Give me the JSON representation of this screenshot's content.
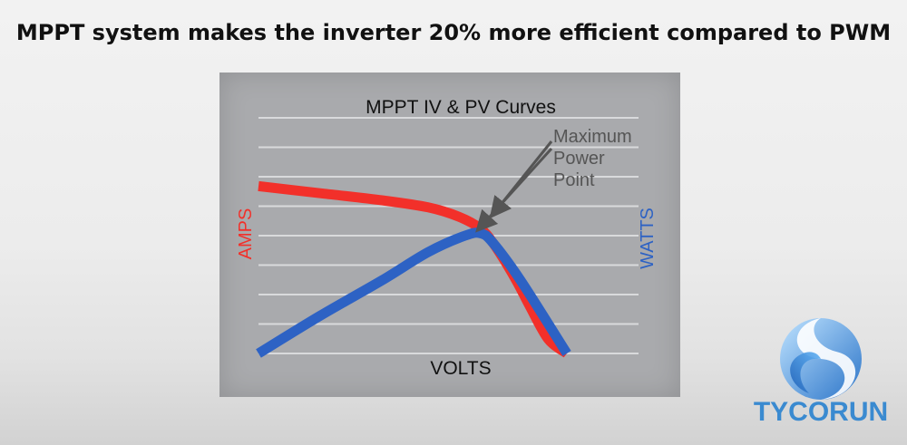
{
  "headline": "MPPT system makes the inverter 20% more efficient compared to PWM",
  "brand": {
    "name": "TYCORUN",
    "color": "#3a8ad0"
  },
  "chart_data": {
    "type": "line",
    "title": "MPPT IV & PV Curves",
    "xlabel": "VOLTS",
    "ylabel_left": "AMPS",
    "ylabel_right": "WATTS",
    "annotation": [
      "Maximum",
      "Power",
      "Point"
    ],
    "grid": true,
    "xlim": [
      0,
      100
    ],
    "ylim": [
      0,
      100
    ],
    "series": [
      {
        "role": "current",
        "axis": "left",
        "color": "#f2302a",
        "x": [
          0,
          20,
          40,
          55,
          65,
          72,
          76,
          80,
          84,
          88,
          94,
          100
        ],
        "y": [
          71,
          68,
          65,
          62,
          58,
          53,
          47,
          39,
          30,
          20,
          6,
          0
        ]
      },
      {
        "role": "power",
        "axis": "right",
        "color": "#2d62c4",
        "x": [
          0,
          20,
          40,
          55,
          67,
          72,
          76,
          85,
          100
        ],
        "y": [
          0,
          16,
          31,
          43,
          50,
          51,
          47,
          31,
          0
        ]
      }
    ],
    "colors": {
      "panel": "#a9aaad",
      "grid": "#d9dadc",
      "arrow": "#555555"
    }
  }
}
